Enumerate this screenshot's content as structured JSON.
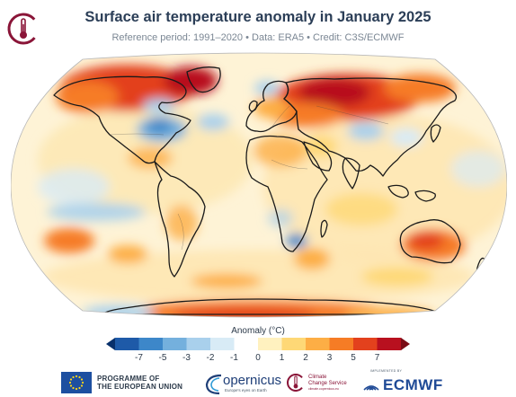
{
  "header": {
    "title": "Surface air temperature anomaly in January 2025",
    "subtitle": "Reference period: 1991–2020 • Data: ERA5 • Credit: C3S/ECMWF",
    "logo_icon": "c3s-thermometer-icon"
  },
  "map": {
    "projection": "robinson",
    "variable": "surface air temperature anomaly",
    "month": "January 2025"
  },
  "legend": {
    "title": "Anomaly (°C)",
    "ticks": [
      "-7",
      "-5",
      "-3",
      "-2",
      "-1",
      "0",
      "1",
      "2",
      "3",
      "5",
      "7"
    ],
    "colors": [
      "#08306b",
      "#1e5aa8",
      "#3d87c9",
      "#74b0dd",
      "#a9d0ec",
      "#d8ebf6",
      "#ffffff",
      "#fff1bf",
      "#fed876",
      "#fdae45",
      "#f67c25",
      "#e3411d",
      "#b8101f",
      "#7a0c16"
    ]
  },
  "footer": {
    "eu": {
      "line1": "PROGRAMME OF",
      "line2": "THE EUROPEAN UNION",
      "icon": "eu-flag-icon"
    },
    "copernicus": {
      "name": "opernicus",
      "tagline": "Europe's eyes on Earth",
      "icon": "copernicus-swoosh-icon"
    },
    "c3s": {
      "line1": "Climate",
      "line2": "Change Service",
      "tagline": "climate.copernicus.eu",
      "icon": "c3s-logo-icon"
    },
    "ecmwf": {
      "tag": "IMPLEMENTED BY",
      "name": "ECMWF",
      "icon": "ecmwf-logo-icon"
    }
  }
}
